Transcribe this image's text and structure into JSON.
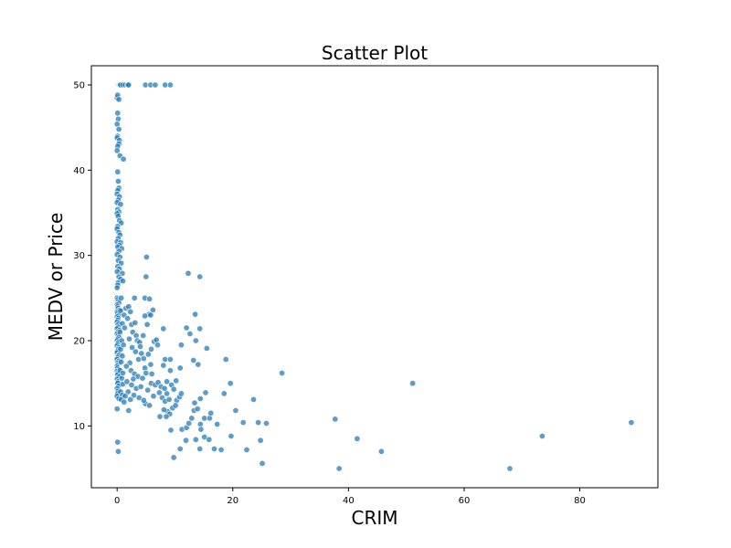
{
  "chart_data": {
    "type": "scatter",
    "title": "Scatter Plot",
    "xlabel": "CRIM",
    "ylabel": "MEDV or Price",
    "xlim": [
      -4.45,
      93.5
    ],
    "ylim": [
      2.75,
      52.25
    ],
    "xticks": [
      0,
      20,
      40,
      60,
      80
    ],
    "yticks": [
      10,
      20,
      30,
      40,
      50
    ],
    "grid": false,
    "color": "#1f77b4",
    "points": [
      [
        0.01,
        50
      ],
      [
        0.02,
        50
      ],
      [
        0.05,
        50
      ],
      [
        0.08,
        50
      ],
      [
        0.12,
        50
      ],
      [
        0.15,
        50
      ],
      [
        0.2,
        50
      ],
      [
        0.25,
        50
      ],
      [
        0.3,
        50
      ],
      [
        0.4,
        50
      ],
      [
        0.5,
        50
      ],
      [
        0.6,
        50
      ],
      [
        1.0,
        50
      ],
      [
        1.4,
        50
      ],
      [
        1.8,
        50
      ],
      [
        2.0,
        50
      ],
      [
        4.9,
        50
      ],
      [
        5.8,
        50
      ],
      [
        6.6,
        50
      ],
      [
        8.3,
        50
      ],
      [
        9.2,
        50
      ],
      [
        0.0,
        48.5
      ],
      [
        0.1,
        48.8
      ],
      [
        0.3,
        48.3
      ],
      [
        0.1,
        46.7
      ],
      [
        0.2,
        46.0
      ],
      [
        0.0,
        45.4
      ],
      [
        0.3,
        44.8
      ],
      [
        0.1,
        44.0
      ],
      [
        0.0,
        43.8
      ],
      [
        0.4,
        43.5
      ],
      [
        0.3,
        43.1
      ],
      [
        0.1,
        42.8
      ],
      [
        0.0,
        42.3
      ],
      [
        0.5,
        41.7
      ],
      [
        1.1,
        41.3
      ],
      [
        0.1,
        39.8
      ],
      [
        0.2,
        38.7
      ],
      [
        0.3,
        37.9
      ],
      [
        0.1,
        37.6
      ],
      [
        0.0,
        37.2
      ],
      [
        0.4,
        36.9
      ],
      [
        0.2,
        36.5
      ],
      [
        0.0,
        36.2
      ],
      [
        0.6,
        36.0
      ],
      [
        0.1,
        35.4
      ],
      [
        0.3,
        35.1
      ],
      [
        0.0,
        34.9
      ],
      [
        0.2,
        34.6
      ],
      [
        0.4,
        34.1
      ],
      [
        0.7,
        33.8
      ],
      [
        0.1,
        33.4
      ],
      [
        0.0,
        33.1
      ],
      [
        0.3,
        32.7
      ],
      [
        0.5,
        32.4
      ],
      [
        0.2,
        32.0
      ],
      [
        0.0,
        31.6
      ],
      [
        0.6,
        31.5
      ],
      [
        0.4,
        31.2
      ],
      [
        0.1,
        31.0
      ],
      [
        0.8,
        30.8
      ],
      [
        0.3,
        30.5
      ],
      [
        0.0,
        30.1
      ],
      [
        0.5,
        29.8
      ],
      [
        0.2,
        29.4
      ],
      [
        0.7,
        29.1
      ],
      [
        0.1,
        28.7
      ],
      [
        0.4,
        28.4
      ],
      [
        0.0,
        28.1
      ],
      [
        0.9,
        27.9
      ],
      [
        0.3,
        27.5
      ],
      [
        0.6,
        27.2
      ],
      [
        0.2,
        26.8
      ],
      [
        0.1,
        26.5
      ],
      [
        0.0,
        26.2
      ],
      [
        1.0,
        27.0
      ],
      [
        0.0,
        25.0
      ],
      [
        0.1,
        24.8
      ],
      [
        0.2,
        24.6
      ],
      [
        0.3,
        24.4
      ],
      [
        0.0,
        24.2
      ],
      [
        0.1,
        24.0
      ],
      [
        0.2,
        23.8
      ],
      [
        0.4,
        23.6
      ],
      [
        0.0,
        23.4
      ],
      [
        0.1,
        23.2
      ],
      [
        0.3,
        23.0
      ],
      [
        0.0,
        22.8
      ],
      [
        0.2,
        22.6
      ],
      [
        0.1,
        22.4
      ],
      [
        0.0,
        22.2
      ],
      [
        0.3,
        22.0
      ],
      [
        0.1,
        21.8
      ],
      [
        0.2,
        21.6
      ],
      [
        0.0,
        21.4
      ],
      [
        0.4,
        21.2
      ],
      [
        0.1,
        21.0
      ],
      [
        0.0,
        20.8
      ],
      [
        0.2,
        20.6
      ],
      [
        0.3,
        20.4
      ],
      [
        0.1,
        20.2
      ],
      [
        0.0,
        20.0
      ],
      [
        0.2,
        19.8
      ],
      [
        0.1,
        19.6
      ],
      [
        0.0,
        19.4
      ],
      [
        0.3,
        19.2
      ],
      [
        0.2,
        19.0
      ],
      [
        0.1,
        18.8
      ],
      [
        0.0,
        18.6
      ],
      [
        0.4,
        18.4
      ],
      [
        0.2,
        18.2
      ],
      [
        0.1,
        18.0
      ],
      [
        0.0,
        17.8
      ],
      [
        0.3,
        17.6
      ],
      [
        0.1,
        17.4
      ],
      [
        0.2,
        17.2
      ],
      [
        0.0,
        17.0
      ],
      [
        0.1,
        16.8
      ],
      [
        0.3,
        16.6
      ],
      [
        0.0,
        16.4
      ],
      [
        0.2,
        16.2
      ],
      [
        0.1,
        16.0
      ],
      [
        0.4,
        15.8
      ],
      [
        0.0,
        15.5
      ],
      [
        0.2,
        15.2
      ],
      [
        0.1,
        15.0
      ],
      [
        0.3,
        14.7
      ],
      [
        0.0,
        14.4
      ],
      [
        0.2,
        14.1
      ],
      [
        0.1,
        13.8
      ],
      [
        0.0,
        13.5
      ],
      [
        0.3,
        13.2
      ],
      [
        0.0,
        12.0
      ],
      [
        0.1,
        8.1
      ],
      [
        0.2,
        7.0
      ],
      [
        0.7,
        25.0
      ],
      [
        0.6,
        23.5
      ],
      [
        0.9,
        22.0
      ],
      [
        0.5,
        21.0
      ],
      [
        0.8,
        20.0
      ],
      [
        0.6,
        19.0
      ],
      [
        0.9,
        18.2
      ],
      [
        0.7,
        17.5
      ],
      [
        0.5,
        16.5
      ],
      [
        0.8,
        15.6
      ],
      [
        1.0,
        14.9
      ],
      [
        0.6,
        14.0
      ],
      [
        0.9,
        13.6
      ],
      [
        0.7,
        13.1
      ],
      [
        1.2,
        12.8
      ],
      [
        1.0,
        16.2
      ],
      [
        1.1,
        19.5
      ],
      [
        1.3,
        21.5
      ],
      [
        1.2,
        23.0
      ],
      [
        1.5,
        23.8
      ],
      [
        2.0,
        24.0
      ],
      [
        2.3,
        23.4
      ],
      [
        1.8,
        22.6
      ],
      [
        2.5,
        21.9
      ],
      [
        3.1,
        22.1
      ],
      [
        2.7,
        21.0
      ],
      [
        3.3,
        20.6
      ],
      [
        2.1,
        20.2
      ],
      [
        3.5,
        20.0
      ],
      [
        3.9,
        19.8
      ],
      [
        2.6,
        19.2
      ],
      [
        3.2,
        18.7
      ],
      [
        4.0,
        19.3
      ],
      [
        4.2,
        18.5
      ],
      [
        3.7,
        17.8
      ],
      [
        2.2,
        17.4
      ],
      [
        4.6,
        17.9
      ],
      [
        1.6,
        17.0
      ],
      [
        2.4,
        16.5
      ],
      [
        3.0,
        16.1
      ],
      [
        3.6,
        15.8
      ],
      [
        2.8,
        15.5
      ],
      [
        4.4,
        15.6
      ],
      [
        1.7,
        15.2
      ],
      [
        2.5,
        14.8
      ],
      [
        3.3,
        14.4
      ],
      [
        4.1,
        14.6
      ],
      [
        1.9,
        14.0
      ],
      [
        2.9,
        13.6
      ],
      [
        3.8,
        13.3
      ],
      [
        2.3,
        13.1
      ],
      [
        1.4,
        13.5
      ],
      [
        4.8,
        16.8
      ],
      [
        5.0,
        16.2
      ],
      [
        4.5,
        20.6
      ],
      [
        5.2,
        21.9
      ],
      [
        5.5,
        23.1
      ],
      [
        4.8,
        22.9
      ],
      [
        3.0,
        25.0
      ],
      [
        4.8,
        25.0
      ],
      [
        5.6,
        24.9
      ],
      [
        5.0,
        27.5
      ],
      [
        5.1,
        29.8
      ],
      [
        2.0,
        11.8
      ],
      [
        4.9,
        12.6
      ],
      [
        5.6,
        12.4
      ],
      [
        4.6,
        13.0
      ],
      [
        6.3,
        13.5
      ],
      [
        5.3,
        14.2
      ],
      [
        5.9,
        15.0
      ],
      [
        6.6,
        14.8
      ],
      [
        7.1,
        15.1
      ],
      [
        7.6,
        14.6
      ],
      [
        6.0,
        16.1
      ],
      [
        5.8,
        17.2
      ],
      [
        5.4,
        18.4
      ],
      [
        5.9,
        19.0
      ],
      [
        6.4,
        19.9
      ],
      [
        6.8,
        20.1
      ],
      [
        7.0,
        19.5
      ],
      [
        8.0,
        21.4
      ],
      [
        6.2,
        23.6
      ],
      [
        5.8,
        23.0
      ],
      [
        7.3,
        13.9
      ],
      [
        7.8,
        13.3
      ],
      [
        8.3,
        12.9
      ],
      [
        8.6,
        13.8
      ],
      [
        9.0,
        13.1
      ],
      [
        8.2,
        14.4
      ],
      [
        9.4,
        14.8
      ],
      [
        8.6,
        15.2
      ],
      [
        9.8,
        14.3
      ],
      [
        10.3,
        13.0
      ],
      [
        9.6,
        12.1
      ],
      [
        8.7,
        11.7
      ],
      [
        8.1,
        11.9
      ],
      [
        9.1,
        11.4
      ],
      [
        10.1,
        12.4
      ],
      [
        10.8,
        13.4
      ],
      [
        11.1,
        13.8
      ],
      [
        10.2,
        15.3
      ],
      [
        9.2,
        16.5
      ],
      [
        8.0,
        17.1
      ],
      [
        8.3,
        17.8
      ],
      [
        9.2,
        17.8
      ],
      [
        10.9,
        16.8
      ],
      [
        7.4,
        11.1
      ],
      [
        8.5,
        11.1
      ],
      [
        9.3,
        9.5
      ],
      [
        9.8,
        6.3
      ],
      [
        10.9,
        7.3
      ],
      [
        11.9,
        8.3
      ],
      [
        11.2,
        9.6
      ],
      [
        12.0,
        9.8
      ],
      [
        12.4,
        10.3
      ],
      [
        12.9,
        10.9
      ],
      [
        13.3,
        11.8
      ],
      [
        13.9,
        12.0
      ],
      [
        13.4,
        12.7
      ],
      [
        14.4,
        13.2
      ],
      [
        15.3,
        13.9
      ],
      [
        14.4,
        10.2
      ],
      [
        14.5,
        9.6
      ],
      [
        13.6,
        8.4
      ],
      [
        14.3,
        7.3
      ],
      [
        15.1,
        8.7
      ],
      [
        15.9,
        8.4
      ],
      [
        16.8,
        7.3
      ],
      [
        18.0,
        7.2
      ],
      [
        15.1,
        10.9
      ],
      [
        16.0,
        10.9
      ],
      [
        17.3,
        10.2
      ],
      [
        16.2,
        11.5
      ],
      [
        18.5,
        13.8
      ],
      [
        19.6,
        15.0
      ],
      [
        20.5,
        11.8
      ],
      [
        19.7,
        8.8
      ],
      [
        22.4,
        7.2
      ],
      [
        21.8,
        10.4
      ],
      [
        24.4,
        10.4
      ],
      [
        24.8,
        8.3
      ],
      [
        25.1,
        5.6
      ],
      [
        25.8,
        10.3
      ],
      [
        23.6,
        13.1
      ],
      [
        28.5,
        16.2
      ],
      [
        12.3,
        27.9
      ],
      [
        14.3,
        27.5
      ],
      [
        13.5,
        23.1
      ],
      [
        14.3,
        21.4
      ],
      [
        12.6,
        20.8
      ],
      [
        13.6,
        20.0
      ],
      [
        15.5,
        19.1
      ],
      [
        18.8,
        17.8
      ],
      [
        14.0,
        17.2
      ],
      [
        11.1,
        19.5
      ],
      [
        12.0,
        21.5
      ],
      [
        13.2,
        17.7
      ],
      [
        37.7,
        10.8
      ],
      [
        38.4,
        5.0
      ],
      [
        41.5,
        8.5
      ],
      [
        45.7,
        7.0
      ],
      [
        51.1,
        15.0
      ],
      [
        67.9,
        5.0
      ],
      [
        73.5,
        8.8
      ],
      [
        88.9,
        10.4
      ]
    ]
  }
}
